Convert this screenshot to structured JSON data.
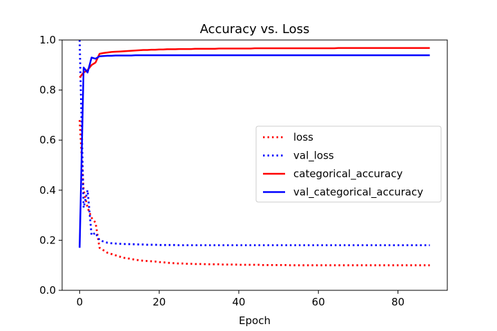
{
  "chart_data": {
    "type": "line",
    "title": "Accuracy vs. Loss",
    "xlabel": "Epoch",
    "ylabel": "",
    "xlim": [
      -4.4,
      92.4
    ],
    "ylim": [
      0.0,
      1.0
    ],
    "xticks": [
      0,
      20,
      40,
      60,
      80
    ],
    "yticks": [
      0.0,
      0.2,
      0.4,
      0.6,
      0.8,
      1.0
    ],
    "xtick_labels": [
      "0",
      "20",
      "40",
      "60",
      "80"
    ],
    "ytick_labels": [
      "0.0",
      "0.2",
      "0.4",
      "0.6",
      "0.8",
      "1.0"
    ],
    "grid": false,
    "legend_position": "center-right",
    "x": [
      0,
      1,
      2,
      3,
      4,
      5,
      6,
      7,
      8,
      9,
      10,
      11,
      12,
      13,
      14,
      15,
      16,
      17,
      18,
      19,
      20,
      21,
      22,
      23,
      24,
      25,
      26,
      27,
      28,
      29,
      30,
      31,
      32,
      33,
      34,
      35,
      36,
      37,
      38,
      39,
      40,
      41,
      42,
      43,
      44,
      45,
      46,
      47,
      48,
      49,
      50,
      51,
      52,
      53,
      54,
      55,
      56,
      57,
      58,
      59,
      60,
      61,
      62,
      63,
      64,
      65,
      66,
      67,
      68,
      69,
      70,
      71,
      72,
      73,
      74,
      75,
      76,
      77,
      78,
      79,
      80,
      81,
      82,
      83,
      84,
      85,
      86,
      87,
      88
    ],
    "series": [
      {
        "name": "loss",
        "color": "#ff0000",
        "style": "dotted",
        "values": [
          0.68,
          0.4,
          0.33,
          0.29,
          0.27,
          0.17,
          0.16,
          0.15,
          0.145,
          0.14,
          0.135,
          0.13,
          0.128,
          0.125,
          0.122,
          0.12,
          0.118,
          0.117,
          0.116,
          0.115,
          0.113,
          0.112,
          0.11,
          0.109,
          0.108,
          0.107,
          0.107,
          0.106,
          0.106,
          0.105,
          0.105,
          0.105,
          0.104,
          0.104,
          0.104,
          0.104,
          0.103,
          0.103,
          0.103,
          0.103,
          0.102,
          0.102,
          0.102,
          0.102,
          0.102,
          0.102,
          0.101,
          0.101,
          0.101,
          0.101,
          0.101,
          0.101,
          0.101,
          0.1,
          0.1,
          0.1,
          0.1,
          0.1,
          0.1,
          0.1,
          0.1,
          0.1,
          0.1,
          0.1,
          0.1,
          0.1,
          0.1,
          0.1,
          0.1,
          0.1,
          0.1,
          0.1,
          0.1,
          0.1,
          0.1,
          0.1,
          0.1,
          0.1,
          0.1,
          0.1,
          0.1,
          0.1,
          0.1,
          0.1,
          0.1,
          0.1,
          0.1,
          0.1,
          0.1
        ]
      },
      {
        "name": "val_loss",
        "color": "#0000ff",
        "style": "dotted",
        "values": [
          1.0,
          0.33,
          0.4,
          0.22,
          0.23,
          0.2,
          0.195,
          0.19,
          0.188,
          0.187,
          0.186,
          0.185,
          0.185,
          0.184,
          0.184,
          0.183,
          0.183,
          0.182,
          0.182,
          0.182,
          0.181,
          0.181,
          0.181,
          0.181,
          0.181,
          0.18,
          0.18,
          0.18,
          0.18,
          0.18,
          0.18,
          0.18,
          0.18,
          0.18,
          0.18,
          0.18,
          0.18,
          0.18,
          0.18,
          0.18,
          0.18,
          0.18,
          0.18,
          0.18,
          0.18,
          0.18,
          0.18,
          0.18,
          0.18,
          0.18,
          0.18,
          0.18,
          0.18,
          0.18,
          0.18,
          0.18,
          0.18,
          0.18,
          0.18,
          0.18,
          0.18,
          0.18,
          0.18,
          0.18,
          0.18,
          0.18,
          0.18,
          0.18,
          0.18,
          0.18,
          0.18,
          0.18,
          0.18,
          0.18,
          0.18,
          0.18,
          0.18,
          0.18,
          0.18,
          0.18,
          0.18,
          0.18,
          0.18,
          0.18,
          0.18,
          0.18,
          0.18,
          0.18,
          0.18
        ]
      },
      {
        "name": "categorical_accuracy",
        "color": "#ff0000",
        "style": "solid",
        "values": [
          0.85,
          0.87,
          0.88,
          0.9,
          0.91,
          0.945,
          0.948,
          0.95,
          0.952,
          0.953,
          0.954,
          0.955,
          0.956,
          0.957,
          0.958,
          0.959,
          0.96,
          0.96,
          0.961,
          0.961,
          0.962,
          0.962,
          0.963,
          0.963,
          0.963,
          0.964,
          0.964,
          0.964,
          0.964,
          0.965,
          0.965,
          0.965,
          0.965,
          0.965,
          0.965,
          0.966,
          0.966,
          0.966,
          0.966,
          0.966,
          0.966,
          0.966,
          0.966,
          0.966,
          0.967,
          0.967,
          0.967,
          0.967,
          0.967,
          0.967,
          0.967,
          0.967,
          0.967,
          0.967,
          0.967,
          0.967,
          0.967,
          0.967,
          0.967,
          0.967,
          0.967,
          0.967,
          0.967,
          0.967,
          0.967,
          0.968,
          0.968,
          0.968,
          0.968,
          0.968,
          0.968,
          0.968,
          0.968,
          0.968,
          0.968,
          0.968,
          0.968,
          0.968,
          0.968,
          0.968,
          0.968,
          0.968,
          0.968,
          0.968,
          0.968,
          0.968,
          0.968,
          0.968,
          0.968
        ]
      },
      {
        "name": "val_categorical_accuracy",
        "color": "#0000ff",
        "style": "solid",
        "values": [
          0.17,
          0.89,
          0.87,
          0.93,
          0.925,
          0.935,
          0.936,
          0.937,
          0.937,
          0.938,
          0.938,
          0.938,
          0.938,
          0.938,
          0.939,
          0.939,
          0.939,
          0.939,
          0.939,
          0.939,
          0.939,
          0.939,
          0.939,
          0.939,
          0.939,
          0.939,
          0.939,
          0.939,
          0.939,
          0.939,
          0.939,
          0.939,
          0.939,
          0.939,
          0.939,
          0.939,
          0.939,
          0.939,
          0.939,
          0.939,
          0.939,
          0.939,
          0.939,
          0.939,
          0.939,
          0.939,
          0.939,
          0.939,
          0.939,
          0.939,
          0.939,
          0.939,
          0.939,
          0.939,
          0.939,
          0.939,
          0.939,
          0.939,
          0.939,
          0.939,
          0.939,
          0.939,
          0.939,
          0.939,
          0.939,
          0.939,
          0.939,
          0.939,
          0.939,
          0.939,
          0.939,
          0.939,
          0.939,
          0.939,
          0.939,
          0.939,
          0.939,
          0.939,
          0.939,
          0.939,
          0.939,
          0.939,
          0.939,
          0.939,
          0.939,
          0.939,
          0.939,
          0.939,
          0.939
        ]
      }
    ]
  }
}
